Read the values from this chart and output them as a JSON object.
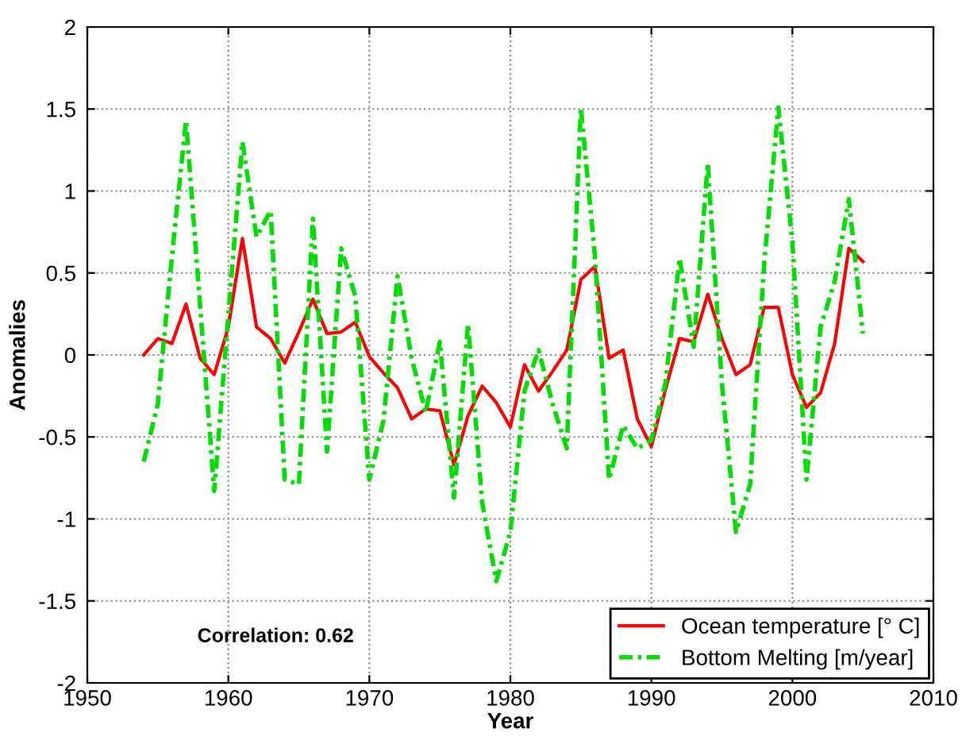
{
  "chart_data": {
    "type": "line",
    "xlabel": "Year",
    "ylabel": "Anomalies",
    "x": [
      1954,
      1955,
      1956,
      1957,
      1958,
      1959,
      1960,
      1961,
      1962,
      1963,
      1964,
      1965,
      1966,
      1967,
      1968,
      1969,
      1970,
      1971,
      1972,
      1973,
      1974,
      1975,
      1976,
      1977,
      1978,
      1979,
      1980,
      1981,
      1982,
      1983,
      1984,
      1985,
      1986,
      1987,
      1988,
      1989,
      1990,
      1991,
      1992,
      1993,
      1994,
      1995,
      1996,
      1997,
      1998,
      1999,
      2000,
      2001,
      2002,
      2003,
      2004,
      2005
    ],
    "series": [
      {
        "name": "Ocean temperature [° C]",
        "color": "#ff0000",
        "line_style": "solid",
        "values": [
          0.0,
          0.1,
          0.07,
          0.31,
          -0.02,
          -0.12,
          0.17,
          0.71,
          0.17,
          0.1,
          -0.05,
          0.14,
          0.34,
          0.13,
          0.14,
          0.2,
          -0.01,
          -0.11,
          -0.2,
          -0.39,
          -0.33,
          -0.34,
          -0.67,
          -0.37,
          -0.19,
          -0.29,
          -0.44,
          -0.06,
          -0.22,
          -0.1,
          0.03,
          0.46,
          0.54,
          -0.02,
          0.03,
          -0.39,
          -0.56,
          -0.21,
          0.1,
          0.08,
          0.37,
          0.1,
          -0.12,
          -0.06,
          0.29,
          0.29,
          -0.12,
          -0.32,
          -0.23,
          0.07,
          0.65,
          0.57
        ]
      },
      {
        "name": "Bottom Melting [m/year]",
        "color": "#00dd00",
        "line_style": "dashed",
        "values": [
          -0.65,
          -0.3,
          0.6,
          1.43,
          0.3,
          -0.83,
          0.24,
          1.3,
          0.72,
          0.88,
          -0.76,
          -0.79,
          0.83,
          -0.59,
          0.65,
          0.36,
          -0.76,
          -0.4,
          0.48,
          -0.02,
          -0.35,
          0.08,
          -0.87,
          0.19,
          -0.9,
          -1.38,
          -1.08,
          -0.22,
          0.03,
          -0.3,
          -0.57,
          1.51,
          0.6,
          -0.76,
          -0.43,
          -0.57,
          -0.52,
          -0.17,
          0.59,
          0.05,
          1.17,
          -0.17,
          -1.08,
          -0.79,
          0.56,
          1.51,
          0.69,
          -0.76,
          0.17,
          0.45,
          0.95,
          0.13
        ]
      }
    ],
    "xlim": [
      1950,
      2010
    ],
    "xticks": [
      1950,
      1960,
      1970,
      1980,
      1990,
      2000,
      2010
    ],
    "ylim": [
      -2,
      2
    ],
    "yticks": [
      -2,
      -1.5,
      -1,
      -0.5,
      0,
      0.5,
      1,
      1.5,
      2
    ],
    "grid": true,
    "legend": "bottom right",
    "annotations": [
      "Correlation: 0.62"
    ]
  }
}
